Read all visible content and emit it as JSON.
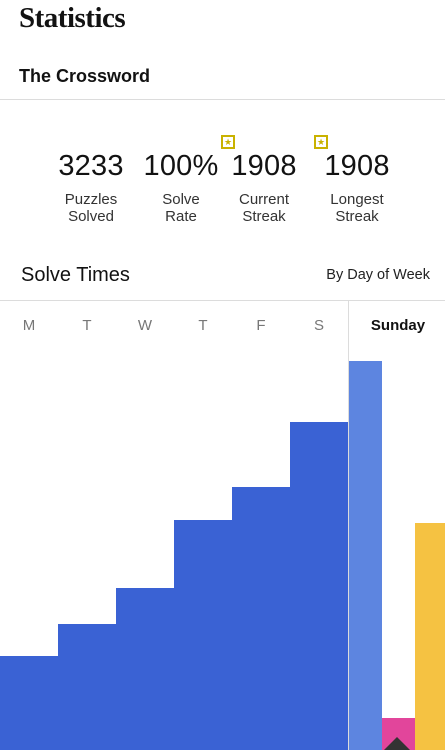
{
  "header": {
    "title": "Statistics"
  },
  "section": {
    "title": "The Crossword"
  },
  "stats": [
    {
      "value": "3233",
      "label_line1": "Puzzles",
      "label_line2": "Solved",
      "badge": false
    },
    {
      "value": "100%",
      "label_line1": "Solve",
      "label_line2": "Rate",
      "badge": false
    },
    {
      "value": "1908",
      "label_line1": "Current",
      "label_line2": "Streak",
      "badge": true
    },
    {
      "value": "1908",
      "label_line1": "Longest",
      "label_line2": "Streak",
      "badge": true
    }
  ],
  "badge_icon": "star-icon",
  "badge_glyph": "★",
  "solve_times": {
    "title": "Solve Times",
    "filter_label": "By Day of Week"
  },
  "chart_data": {
    "type": "bar",
    "categories": [
      "M",
      "T",
      "W",
      "T",
      "F",
      "S",
      "Sunday"
    ],
    "selected_category": "Sunday",
    "values_relative": [
      0.26,
      0.35,
      0.45,
      0.64,
      0.73,
      0.91,
      1.08
    ],
    "sunday_extra_bars": [
      {
        "color": "#e2459b",
        "value_relative": 0.09
      },
      {
        "color": "#f5c242",
        "value_relative": 0.63
      }
    ],
    "colors": {
      "weekday": "#3a62d4",
      "selected": "#5d85e0"
    }
  }
}
